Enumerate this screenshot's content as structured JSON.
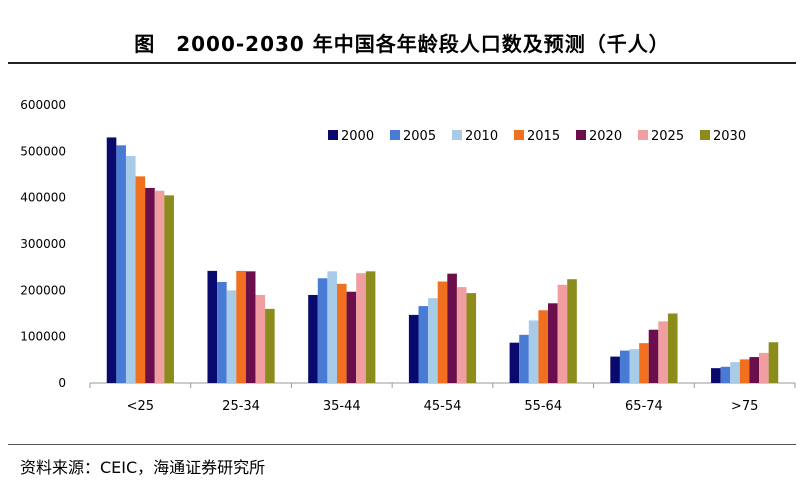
{
  "header": {
    "title": "图　2000-2030 年中国各年龄段人口数及预测（千人）"
  },
  "footer": {
    "source": "资料来源：CEIC，海通证券研究所"
  },
  "chart_data": {
    "type": "bar",
    "title": "图　2000-2030 年中国各年龄段人口数及预测（千人）",
    "xlabel": "",
    "ylabel": "",
    "ylim": [
      0,
      600000
    ],
    "yticks": [
      0,
      100000,
      200000,
      300000,
      400000,
      500000,
      600000
    ],
    "ytick_labels": [
      "0",
      "100000",
      "200000",
      "300000",
      "400000",
      "500000",
      "600000"
    ],
    "grid": false,
    "legend_position": "top-right",
    "categories": [
      "<25",
      "25-34",
      "35-44",
      "45-54",
      "55-64",
      "65-74",
      ">75"
    ],
    "series": [
      {
        "name": "2000",
        "color": "#0a0a6e",
        "values": [
          530000,
          242000,
          190000,
          147000,
          87000,
          57000,
          32000
        ]
      },
      {
        "name": "2005",
        "color": "#4a7bd4",
        "values": [
          513000,
          218000,
          226000,
          166000,
          104000,
          70000,
          35000
        ]
      },
      {
        "name": "2010",
        "color": "#a8cbe8",
        "values": [
          490000,
          200000,
          241000,
          183000,
          135000,
          73000,
          45000
        ]
      },
      {
        "name": "2015",
        "color": "#f07020",
        "values": [
          446000,
          242000,
          214000,
          219000,
          157000,
          86000,
          51000
        ]
      },
      {
        "name": "2020",
        "color": "#6a0f4c",
        "values": [
          421000,
          241000,
          197000,
          236000,
          172000,
          115000,
          56000
        ]
      },
      {
        "name": "2025",
        "color": "#f09ea0",
        "values": [
          415000,
          190000,
          237000,
          207000,
          212000,
          133000,
          65000
        ]
      },
      {
        "name": "2030",
        "color": "#8c8c1c",
        "values": [
          405000,
          160000,
          241000,
          194000,
          224000,
          150000,
          88000
        ]
      }
    ]
  }
}
